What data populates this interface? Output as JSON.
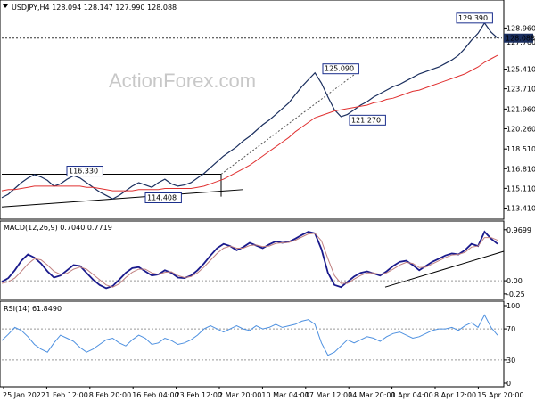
{
  "watermark": "ActionForex.com",
  "chart_data": [
    {
      "type": "line",
      "panel": "price",
      "title": "USDJPY,H4  128.094 128.147 127.990 128.088",
      "y_ticks": [
        "128.960",
        "127.760",
        "125.410",
        "123.710",
        "121.960",
        "120.260",
        "118.510",
        "116.810",
        "115.110",
        "113.410"
      ],
      "ylim": [
        112.6,
        130.3
      ],
      "series": [
        {
          "name": "USDJPY",
          "color": "#1a2e5e",
          "values": [
            114.3,
            114.6,
            115.1,
            115.6,
            116.0,
            116.3,
            116.1,
            115.8,
            115.3,
            115.5,
            115.9,
            116.2,
            116.0,
            115.6,
            115.2,
            114.8,
            114.5,
            114.2,
            114.5,
            114.9,
            115.3,
            115.6,
            115.4,
            115.2,
            115.6,
            115.9,
            115.5,
            115.3,
            115.4,
            115.6,
            116.0,
            116.4,
            116.9,
            117.4,
            117.9,
            118.3,
            118.7,
            119.2,
            119.6,
            120.1,
            120.6,
            121.0,
            121.5,
            122.0,
            122.5,
            123.2,
            123.9,
            124.5,
            125.09,
            124.2,
            123.0,
            121.9,
            121.3,
            121.5,
            121.9,
            122.3,
            122.6,
            123.0,
            123.3,
            123.6,
            123.9,
            124.1,
            124.4,
            124.7,
            125.0,
            125.2,
            125.4,
            125.6,
            125.9,
            126.2,
            126.6,
            127.2,
            127.9,
            128.5,
            129.39,
            128.6,
            128.088
          ]
        },
        {
          "name": "",
          "color": "#e03030",
          "values": [
            114.9,
            115.0,
            115.0,
            115.1,
            115.2,
            115.3,
            115.3,
            115.3,
            115.3,
            115.3,
            115.3,
            115.3,
            115.3,
            115.2,
            115.2,
            115.1,
            115.0,
            114.9,
            114.9,
            114.9,
            114.9,
            115.0,
            115.0,
            115.0,
            115.0,
            115.1,
            115.1,
            115.1,
            115.1,
            115.1,
            115.2,
            115.3,
            115.5,
            115.7,
            115.9,
            116.2,
            116.5,
            116.8,
            117.1,
            117.5,
            117.9,
            118.3,
            118.7,
            119.1,
            119.5,
            120.0,
            120.4,
            120.8,
            121.2,
            121.4,
            121.6,
            121.8,
            121.9,
            122.0,
            122.1,
            122.2,
            122.3,
            122.5,
            122.6,
            122.8,
            122.9,
            123.1,
            123.3,
            123.5,
            123.6,
            123.8,
            124.0,
            124.2,
            124.4,
            124.6,
            124.8,
            125.0,
            125.3,
            125.6,
            126.0,
            126.3,
            126.6
          ]
        }
      ],
      "annotations": [
        "116.330",
        "114.408",
        "125.090",
        "121.270",
        "129.390"
      ],
      "current_value": "128.088"
    },
    {
      "type": "line",
      "panel": "macd",
      "title": "MACD(12,26,9) 0.7040 0.7719",
      "y_ticks": [
        "0.9699",
        "0.00",
        "-0.25"
      ],
      "ylim": [
        -0.32,
        1.0
      ],
      "series": [
        {
          "name": "MACD",
          "color": "#1a1a8c",
          "values": [
            -0.02,
            0.05,
            0.2,
            0.38,
            0.5,
            0.44,
            0.33,
            0.18,
            0.06,
            0.1,
            0.2,
            0.3,
            0.28,
            0.15,
            0.02,
            -0.08,
            -0.14,
            -0.1,
            0.02,
            0.15,
            0.24,
            0.26,
            0.18,
            0.1,
            0.12,
            0.2,
            0.15,
            0.06,
            0.05,
            0.1,
            0.2,
            0.33,
            0.48,
            0.62,
            0.7,
            0.66,
            0.58,
            0.64,
            0.72,
            0.67,
            0.62,
            0.69,
            0.75,
            0.72,
            0.74,
            0.8,
            0.87,
            0.93,
            0.9,
            0.6,
            0.15,
            -0.08,
            -0.12,
            -0.02,
            0.08,
            0.15,
            0.18,
            0.14,
            0.1,
            0.18,
            0.28,
            0.36,
            0.38,
            0.3,
            0.2,
            0.28,
            0.36,
            0.42,
            0.48,
            0.52,
            0.5,
            0.58,
            0.7,
            0.66,
            0.93,
            0.8,
            0.7
          ]
        },
        {
          "name": "",
          "color": "#c08080",
          "values": [
            -0.05,
            -0.02,
            0.05,
            0.18,
            0.32,
            0.42,
            0.4,
            0.3,
            0.18,
            0.12,
            0.14,
            0.22,
            0.26,
            0.22,
            0.12,
            0.02,
            -0.08,
            -0.12,
            -0.06,
            0.06,
            0.16,
            0.22,
            0.22,
            0.15,
            0.12,
            0.16,
            0.17,
            0.1,
            0.06,
            0.08,
            0.15,
            0.26,
            0.39,
            0.52,
            0.62,
            0.66,
            0.62,
            0.62,
            0.67,
            0.68,
            0.65,
            0.66,
            0.71,
            0.72,
            0.73,
            0.77,
            0.83,
            0.89,
            0.9,
            0.76,
            0.42,
            0.1,
            -0.05,
            -0.05,
            0.03,
            0.1,
            0.15,
            0.15,
            0.12,
            0.15,
            0.22,
            0.3,
            0.35,
            0.33,
            0.25,
            0.26,
            0.32,
            0.38,
            0.44,
            0.49,
            0.5,
            0.54,
            0.64,
            0.66,
            0.82,
            0.82,
            0.77
          ]
        }
      ]
    },
    {
      "type": "line",
      "panel": "rsi",
      "title": "RSI(14) 61.8490",
      "y_ticks": [
        "100",
        "70",
        "30",
        "0"
      ],
      "ylim": [
        0,
        100
      ],
      "series": [
        {
          "name": "RSI",
          "color": "#4d90e0",
          "values": [
            55,
            63,
            72,
            68,
            60,
            50,
            44,
            40,
            52,
            62,
            58,
            54,
            46,
            40,
            44,
            50,
            56,
            58,
            52,
            48,
            56,
            62,
            58,
            50,
            52,
            58,
            55,
            50,
            52,
            56,
            62,
            70,
            74,
            70,
            66,
            70,
            74,
            70,
            68,
            74,
            70,
            72,
            76,
            72,
            74,
            76,
            80,
            82,
            76,
            52,
            36,
            40,
            48,
            56,
            52,
            56,
            60,
            58,
            54,
            60,
            64,
            66,
            62,
            58,
            60,
            64,
            68,
            70,
            70,
            72,
            68,
            74,
            78,
            72,
            88,
            72,
            61.849
          ]
        }
      ]
    }
  ],
  "x_ticks": [
    "25 Jan 2022",
    "1 Feb 12:00",
    "8 Feb 20:00",
    "16 Feb 04:00",
    "23 Feb 12:00",
    "2 Mar 20:00",
    "10 Mar 04:00",
    "17 Mar 12:00",
    "24 Mar 20:00",
    "1 Apr 04:00",
    "8 Apr 12:00",
    "15 Apr 20:00"
  ]
}
